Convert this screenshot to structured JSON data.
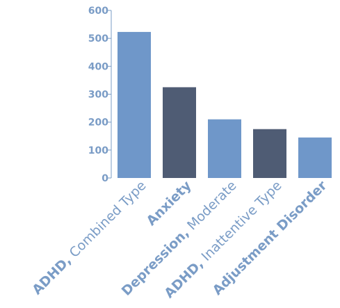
{
  "chart_data": {
    "type": "bar",
    "title": "",
    "xlabel": "",
    "ylabel": "",
    "ylim": [
      0,
      600
    ],
    "yticks": [
      0,
      100,
      200,
      300,
      400,
      500,
      600
    ],
    "categories": [
      {
        "bold": "ADHD,",
        "light": " Combined Type"
      },
      {
        "bold": "Anxiety",
        "light": ""
      },
      {
        "bold": "Depression,",
        "light": " Moderate"
      },
      {
        "bold": "ADHD,",
        "light": " Inattentive Type"
      },
      {
        "bold": "Adjustment Disorder",
        "light": ""
      }
    ],
    "values": [
      523,
      325,
      210,
      175,
      145
    ],
    "colors": [
      "#6f97c9",
      "#4f5c74",
      "#6f97c9",
      "#4f5c74",
      "#6f97c9"
    ],
    "axis_color": "#7a9cc6",
    "label_color": "#7a9cc6",
    "grid": false,
    "legend": "none"
  }
}
